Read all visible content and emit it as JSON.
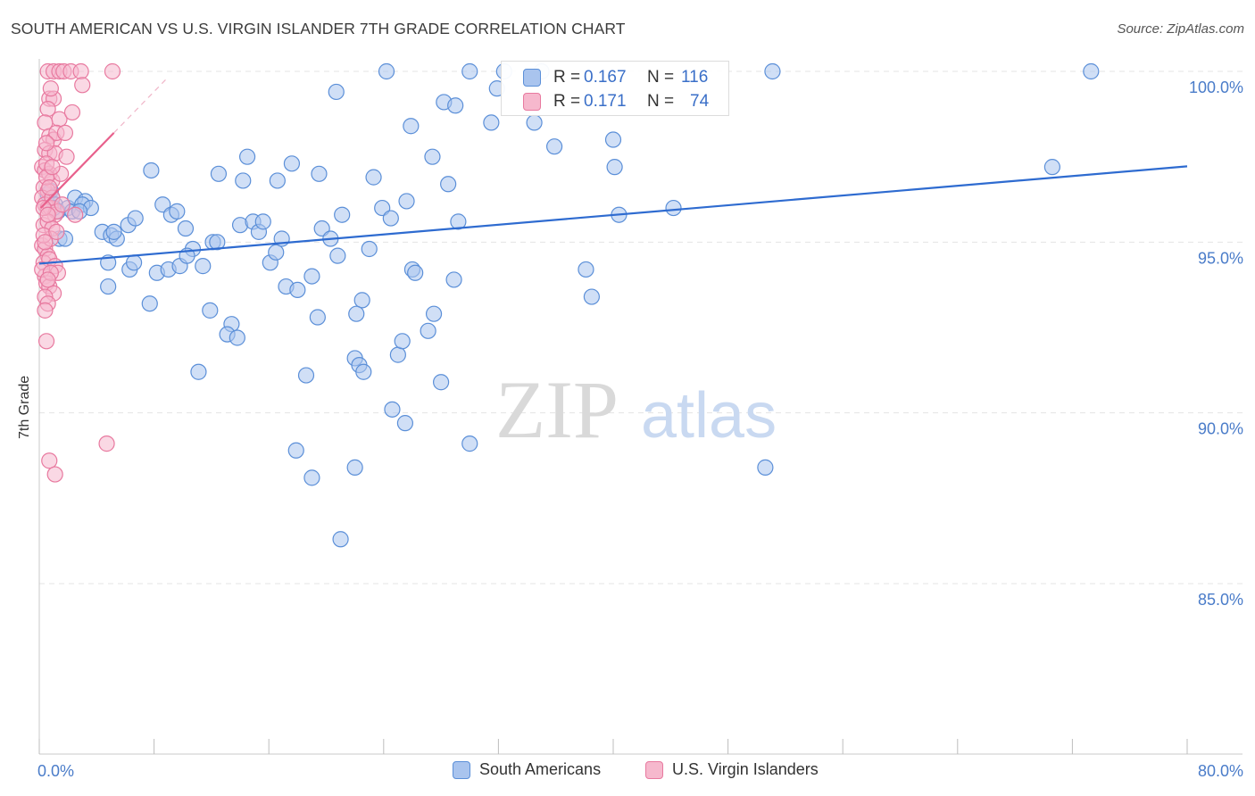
{
  "title": "SOUTH AMERICAN VS U.S. VIRGIN ISLANDER 7TH GRADE CORRELATION CHART",
  "source": "Source: ZipAtlas.com",
  "watermark": {
    "zip": "ZIP",
    "atlas": "atlas"
  },
  "legend": {
    "south": {
      "label": "South Americans",
      "r_label": "R =",
      "r_value": "0.167",
      "n_label": "N =",
      "n_value": "116"
    },
    "virgin": {
      "label": "U.S. Virgin Islanders",
      "r_label": "R =",
      "r_value": "0.171",
      "n_label": "N =",
      "n_value": "74"
    }
  },
  "colors": {
    "blue_fill": "#a9c4ee",
    "blue_stroke": "#5b8fd8",
    "blue_line": "#2e6bd0",
    "pink_fill": "#f6b8cd",
    "pink_stroke": "#e8799f",
    "pink_line": "#e8608c",
    "axis_text": "#4a7cc9",
    "grid": "#e4e4e4"
  },
  "chart_data": {
    "type": "scatter",
    "title": "SOUTH AMERICAN VS U.S. VIRGIN ISLANDER 7TH GRADE CORRELATION CHART",
    "xlabel": "",
    "ylabel": "7th Grade",
    "xlim": [
      0,
      80
    ],
    "ylim": [
      80.5,
      100.8
    ],
    "x_tick_labels": [
      {
        "value": 0,
        "label": "0.0%"
      },
      {
        "value": 80,
        "label": "80.0%"
      }
    ],
    "y_tick_labels": [
      {
        "value": 100,
        "label": "100.0%"
      },
      {
        "value": 95,
        "label": "95.0%"
      },
      {
        "value": 90,
        "label": "90.0%"
      },
      {
        "value": 85,
        "label": "85.0%"
      }
    ],
    "grid": true,
    "series": [
      {
        "name": "South Americans",
        "trend": {
          "x": [
            0,
            80
          ],
          "y": [
            94.37,
            97.22
          ]
        },
        "points": [
          [
            0.6,
            96.4
          ],
          [
            0.8,
            96.5
          ],
          [
            0.9,
            96.3
          ],
          [
            1.1,
            96.1
          ],
          [
            1.3,
            95.9
          ],
          [
            1.0,
            96.0
          ],
          [
            1.4,
            95.1
          ],
          [
            1.8,
            95.1
          ],
          [
            2.0,
            96.0
          ],
          [
            2.3,
            95.9
          ],
          [
            2.5,
            96.3
          ],
          [
            3.2,
            96.2
          ],
          [
            3.0,
            96.1
          ],
          [
            3.6,
            96.0
          ],
          [
            4.4,
            95.3
          ],
          [
            5.0,
            95.2
          ],
          [
            5.4,
            95.1
          ],
          [
            5.2,
            95.3
          ],
          [
            6.2,
            95.5
          ],
          [
            6.7,
            95.7
          ],
          [
            4.8,
            94.4
          ],
          [
            6.3,
            94.2
          ],
          [
            6.6,
            94.4
          ],
          [
            8.2,
            94.1
          ],
          [
            9.0,
            94.2
          ],
          [
            9.8,
            94.3
          ],
          [
            10.7,
            94.8
          ],
          [
            11.4,
            94.3
          ],
          [
            12.1,
            95.0
          ],
          [
            12.4,
            95.0
          ],
          [
            7.8,
            97.1
          ],
          [
            8.6,
            96.1
          ],
          [
            9.2,
            95.8
          ],
          [
            9.6,
            95.9
          ],
          [
            10.2,
            95.4
          ],
          [
            12.5,
            97.0
          ],
          [
            14.2,
            96.8
          ],
          [
            14.5,
            97.5
          ],
          [
            14.0,
            95.5
          ],
          [
            14.9,
            95.6
          ],
          [
            16.6,
            96.8
          ],
          [
            17.6,
            97.3
          ],
          [
            15.3,
            95.3
          ],
          [
            15.6,
            95.6
          ],
          [
            16.9,
            95.1
          ],
          [
            19.5,
            97.0
          ],
          [
            20.7,
            99.4
          ],
          [
            19.7,
            95.4
          ],
          [
            20.3,
            95.1
          ],
          [
            21.1,
            95.8
          ],
          [
            23.3,
            96.9
          ],
          [
            24.2,
            100.0
          ],
          [
            23.9,
            96.0
          ],
          [
            24.5,
            95.7
          ],
          [
            25.9,
            98.4
          ],
          [
            25.6,
            96.2
          ],
          [
            27.4,
            97.5
          ],
          [
            28.5,
            96.7
          ],
          [
            28.2,
            99.1
          ],
          [
            29.0,
            99.0
          ],
          [
            29.2,
            95.6
          ],
          [
            30.0,
            100.0
          ],
          [
            31.5,
            98.5
          ],
          [
            32.4,
            100.0
          ],
          [
            31.9,
            99.5
          ],
          [
            34.5,
            98.5
          ],
          [
            35.0,
            100.0
          ],
          [
            35.9,
            97.8
          ],
          [
            40.4,
            95.8
          ],
          [
            40.1,
            97.2
          ],
          [
            40.0,
            98.0
          ],
          [
            44.2,
            96.0
          ],
          [
            51.1,
            100.0
          ],
          [
            70.6,
            97.2
          ],
          [
            73.3,
            100.0
          ],
          [
            4.8,
            93.7
          ],
          [
            7.7,
            93.2
          ],
          [
            11.9,
            93.0
          ],
          [
            13.4,
            92.6
          ],
          [
            13.1,
            92.3
          ],
          [
            13.8,
            92.2
          ],
          [
            11.1,
            91.2
          ],
          [
            16.1,
            94.4
          ],
          [
            16.5,
            94.7
          ],
          [
            17.2,
            93.7
          ],
          [
            18.0,
            93.6
          ],
          [
            18.6,
            91.1
          ],
          [
            19.0,
            94.0
          ],
          [
            19.4,
            92.8
          ],
          [
            20.8,
            94.6
          ],
          [
            22.0,
            91.6
          ],
          [
            22.3,
            91.4
          ],
          [
            22.6,
            91.2
          ],
          [
            22.5,
            93.3
          ],
          [
            23.0,
            94.8
          ],
          [
            24.6,
            90.1
          ],
          [
            25.0,
            91.7
          ],
          [
            25.3,
            92.1
          ],
          [
            25.5,
            89.7
          ],
          [
            26.0,
            94.2
          ],
          [
            26.2,
            94.1
          ],
          [
            27.1,
            92.4
          ],
          [
            27.5,
            92.9
          ],
          [
            28.0,
            90.9
          ],
          [
            28.9,
            93.9
          ],
          [
            30.0,
            89.1
          ],
          [
            17.9,
            88.9
          ],
          [
            19.0,
            88.1
          ],
          [
            22.0,
            88.4
          ],
          [
            21.0,
            86.3
          ],
          [
            38.1,
            94.2
          ],
          [
            38.5,
            93.4
          ],
          [
            50.6,
            88.4
          ],
          [
            22.1,
            92.9
          ],
          [
            10.3,
            94.6
          ],
          [
            2.8,
            95.9
          ]
        ]
      },
      {
        "name": "U.S. Virgin Islanders",
        "trend": {
          "x": [
            0.1,
            5.2
          ],
          "y": [
            96.0,
            98.2
          ]
        },
        "points": [
          [
            0.6,
            100.0
          ],
          [
            1.0,
            100.0
          ],
          [
            1.4,
            100.0
          ],
          [
            1.7,
            100.0
          ],
          [
            2.2,
            100.0
          ],
          [
            2.9,
            100.0
          ],
          [
            3.0,
            99.6
          ],
          [
            5.1,
            100.0
          ],
          [
            0.7,
            99.2
          ],
          [
            1.0,
            99.2
          ],
          [
            0.6,
            98.9
          ],
          [
            1.4,
            98.6
          ],
          [
            2.3,
            98.8
          ],
          [
            0.4,
            98.5
          ],
          [
            0.7,
            98.1
          ],
          [
            1.0,
            98.0
          ],
          [
            1.2,
            98.2
          ],
          [
            1.8,
            98.2
          ],
          [
            0.4,
            97.7
          ],
          [
            0.7,
            97.6
          ],
          [
            1.1,
            97.6
          ],
          [
            1.9,
            97.5
          ],
          [
            0.2,
            97.2
          ],
          [
            0.4,
            97.1
          ],
          [
            0.7,
            97.0
          ],
          [
            0.9,
            96.8
          ],
          [
            0.3,
            96.6
          ],
          [
            0.6,
            96.5
          ],
          [
            0.2,
            96.3
          ],
          [
            0.4,
            96.1
          ],
          [
            0.6,
            96.0
          ],
          [
            0.8,
            96.0
          ],
          [
            1.1,
            95.8
          ],
          [
            1.2,
            95.9
          ],
          [
            0.3,
            95.5
          ],
          [
            0.6,
            95.6
          ],
          [
            0.9,
            95.4
          ],
          [
            2.5,
            95.8
          ],
          [
            0.2,
            94.9
          ],
          [
            0.4,
            94.8
          ],
          [
            0.6,
            94.6
          ],
          [
            0.3,
            94.4
          ],
          [
            0.7,
            94.5
          ],
          [
            1.1,
            94.3
          ],
          [
            1.3,
            94.1
          ],
          [
            0.4,
            94.0
          ],
          [
            0.5,
            93.8
          ],
          [
            0.7,
            93.7
          ],
          [
            1.0,
            93.5
          ],
          [
            0.4,
            93.4
          ],
          [
            0.6,
            93.2
          ],
          [
            0.4,
            93.0
          ],
          [
            0.5,
            92.1
          ],
          [
            0.7,
            88.6
          ],
          [
            1.1,
            88.2
          ],
          [
            4.7,
            89.1
          ],
          [
            0.5,
            97.3
          ],
          [
            1.5,
            97.0
          ],
          [
            0.8,
            95.1
          ],
          [
            0.9,
            96.3
          ],
          [
            0.3,
            95.2
          ],
          [
            0.5,
            97.9
          ],
          [
            1.6,
            96.1
          ],
          [
            0.2,
            94.2
          ],
          [
            0.8,
            99.5
          ],
          [
            0.5,
            96.9
          ],
          [
            0.3,
            96.0
          ],
          [
            0.8,
            94.1
          ],
          [
            0.6,
            95.8
          ],
          [
            0.9,
            97.2
          ],
          [
            0.4,
            95.0
          ],
          [
            0.7,
            96.6
          ],
          [
            1.2,
            95.3
          ],
          [
            0.6,
            93.9
          ]
        ]
      }
    ]
  }
}
